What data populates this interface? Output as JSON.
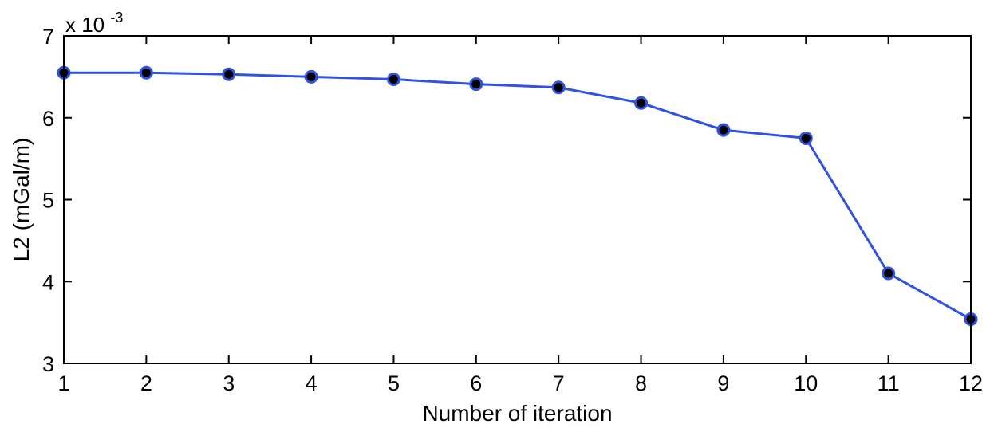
{
  "chart_data": {
    "type": "line",
    "xlabel": "Number of iteration",
    "ylabel": "L2 (mGal/m)",
    "y_scale_label": "x 10",
    "y_scale_exponent": "-3",
    "xlim": [
      1,
      12
    ],
    "ylim": [
      3,
      7
    ],
    "xticks": [
      1,
      2,
      3,
      4,
      5,
      6,
      7,
      8,
      9,
      10,
      11,
      12
    ],
    "yticks": [
      3,
      4,
      5,
      6,
      7
    ],
    "grid": false,
    "line_color": "#2f52e0",
    "marker_color": "#000000",
    "series": [
      {
        "x": [
          1,
          2,
          3,
          4,
          5,
          6,
          7,
          8,
          9,
          10,
          11,
          12
        ],
        "values": [
          6.55,
          6.55,
          6.53,
          6.5,
          6.47,
          6.41,
          6.37,
          6.18,
          5.85,
          5.75,
          4.1,
          3.54
        ]
      }
    ]
  }
}
